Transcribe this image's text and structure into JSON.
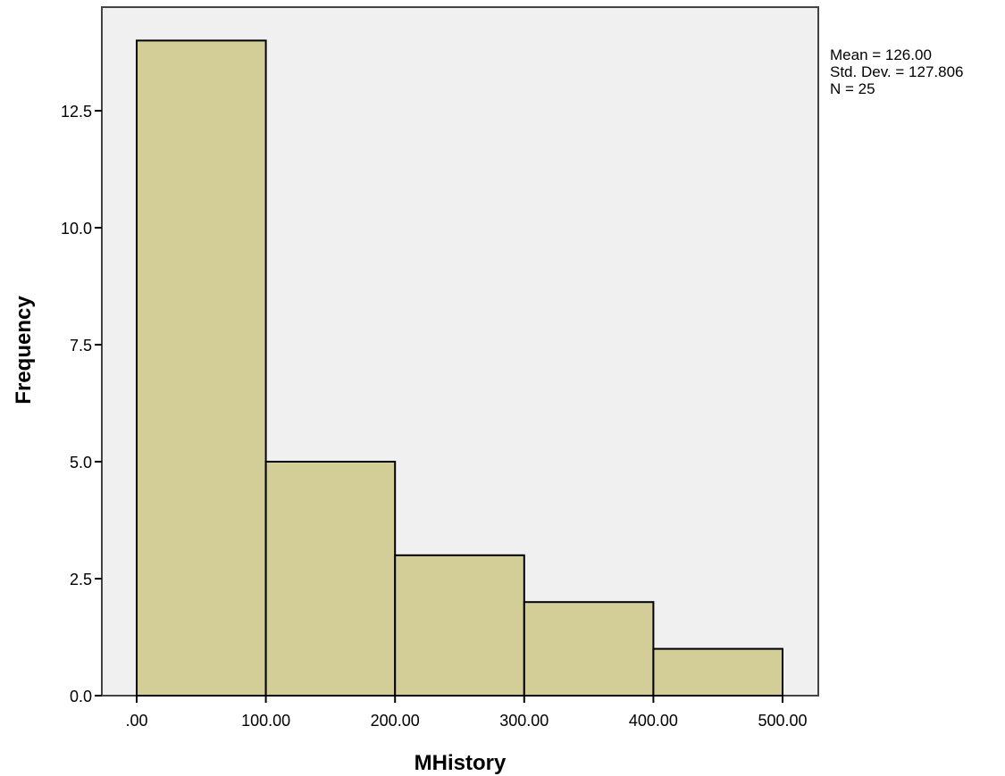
{
  "chart_data": {
    "type": "bar",
    "subtype": "histogram",
    "bins": [
      {
        "start": 0,
        "end": 100,
        "frequency": 14
      },
      {
        "start": 100,
        "end": 200,
        "frequency": 5
      },
      {
        "start": 200,
        "end": 300,
        "frequency": 3
      },
      {
        "start": 300,
        "end": 400,
        "frequency": 2
      },
      {
        "start": 400,
        "end": 500,
        "frequency": 1
      }
    ],
    "xlabel": "MHistory",
    "ylabel": "Frequency",
    "xlim": [
      -25,
      530
    ],
    "ylim": [
      0,
      14.5
    ],
    "x_ticks": [
      0,
      100,
      200,
      300,
      400,
      500
    ],
    "x_tick_labels": [
      ".00",
      "100.00",
      "200.00",
      "300.00",
      "400.00",
      "500.00"
    ],
    "y_ticks": [
      0,
      2.5,
      5,
      7.5,
      10,
      12.5
    ],
    "y_tick_labels": [
      "0.0",
      "2.5",
      "5.0",
      "7.5",
      "10.0",
      "12.5"
    ],
    "grid": false,
    "stats": {
      "mean": "Mean = 126.00",
      "std_dev": "Std. Dev. = 127.806",
      "n": "N = 25"
    },
    "colors": {
      "plot_background": "#f0f0f0",
      "bar_fill": "#d3ce98",
      "bar_stroke": "#000000",
      "frame": "#444444"
    }
  }
}
